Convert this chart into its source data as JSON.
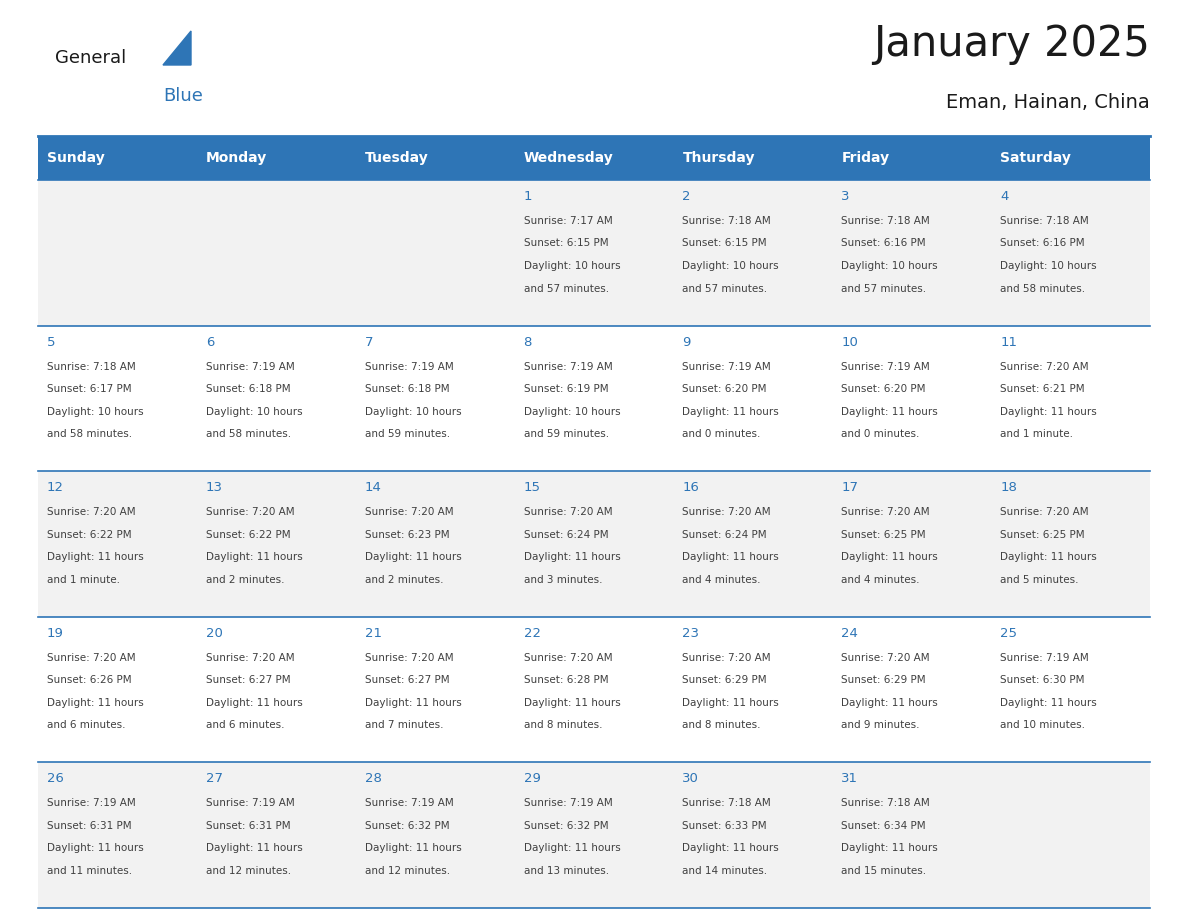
{
  "title": "January 2025",
  "subtitle": "Eman, Hainan, China",
  "days_of_week": [
    "Sunday",
    "Monday",
    "Tuesday",
    "Wednesday",
    "Thursday",
    "Friday",
    "Saturday"
  ],
  "header_bg": "#2E75B6",
  "header_text": "#FFFFFF",
  "day_number_color": "#2E75B6",
  "cell_bg_odd": "#F2F2F2",
  "cell_bg_even": "#FFFFFF",
  "text_color": "#404040",
  "line_color": "#2E75B6",
  "calendar_data": [
    [
      null,
      null,
      null,
      {
        "day": "1",
        "sunrise": "7:17 AM",
        "sunset": "6:15 PM",
        "daylight": "10 hours",
        "daylight2": "and 57 minutes."
      },
      {
        "day": "2",
        "sunrise": "7:18 AM",
        "sunset": "6:15 PM",
        "daylight": "10 hours",
        "daylight2": "and 57 minutes."
      },
      {
        "day": "3",
        "sunrise": "7:18 AM",
        "sunset": "6:16 PM",
        "daylight": "10 hours",
        "daylight2": "and 57 minutes."
      },
      {
        "day": "4",
        "sunrise": "7:18 AM",
        "sunset": "6:16 PM",
        "daylight": "10 hours",
        "daylight2": "and 58 minutes."
      }
    ],
    [
      {
        "day": "5",
        "sunrise": "7:18 AM",
        "sunset": "6:17 PM",
        "daylight": "10 hours",
        "daylight2": "and 58 minutes."
      },
      {
        "day": "6",
        "sunrise": "7:19 AM",
        "sunset": "6:18 PM",
        "daylight": "10 hours",
        "daylight2": "and 58 minutes."
      },
      {
        "day": "7",
        "sunrise": "7:19 AM",
        "sunset": "6:18 PM",
        "daylight": "10 hours",
        "daylight2": "and 59 minutes."
      },
      {
        "day": "8",
        "sunrise": "7:19 AM",
        "sunset": "6:19 PM",
        "daylight": "10 hours",
        "daylight2": "and 59 minutes."
      },
      {
        "day": "9",
        "sunrise": "7:19 AM",
        "sunset": "6:20 PM",
        "daylight": "11 hours",
        "daylight2": "and 0 minutes."
      },
      {
        "day": "10",
        "sunrise": "7:19 AM",
        "sunset": "6:20 PM",
        "daylight": "11 hours",
        "daylight2": "and 0 minutes."
      },
      {
        "day": "11",
        "sunrise": "7:20 AM",
        "sunset": "6:21 PM",
        "daylight": "11 hours",
        "daylight2": "and 1 minute."
      }
    ],
    [
      {
        "day": "12",
        "sunrise": "7:20 AM",
        "sunset": "6:22 PM",
        "daylight": "11 hours",
        "daylight2": "and 1 minute."
      },
      {
        "day": "13",
        "sunrise": "7:20 AM",
        "sunset": "6:22 PM",
        "daylight": "11 hours",
        "daylight2": "and 2 minutes."
      },
      {
        "day": "14",
        "sunrise": "7:20 AM",
        "sunset": "6:23 PM",
        "daylight": "11 hours",
        "daylight2": "and 2 minutes."
      },
      {
        "day": "15",
        "sunrise": "7:20 AM",
        "sunset": "6:24 PM",
        "daylight": "11 hours",
        "daylight2": "and 3 minutes."
      },
      {
        "day": "16",
        "sunrise": "7:20 AM",
        "sunset": "6:24 PM",
        "daylight": "11 hours",
        "daylight2": "and 4 minutes."
      },
      {
        "day": "17",
        "sunrise": "7:20 AM",
        "sunset": "6:25 PM",
        "daylight": "11 hours",
        "daylight2": "and 4 minutes."
      },
      {
        "day": "18",
        "sunrise": "7:20 AM",
        "sunset": "6:25 PM",
        "daylight": "11 hours",
        "daylight2": "and 5 minutes."
      }
    ],
    [
      {
        "day": "19",
        "sunrise": "7:20 AM",
        "sunset": "6:26 PM",
        "daylight": "11 hours",
        "daylight2": "and 6 minutes."
      },
      {
        "day": "20",
        "sunrise": "7:20 AM",
        "sunset": "6:27 PM",
        "daylight": "11 hours",
        "daylight2": "and 6 minutes."
      },
      {
        "day": "21",
        "sunrise": "7:20 AM",
        "sunset": "6:27 PM",
        "daylight": "11 hours",
        "daylight2": "and 7 minutes."
      },
      {
        "day": "22",
        "sunrise": "7:20 AM",
        "sunset": "6:28 PM",
        "daylight": "11 hours",
        "daylight2": "and 8 minutes."
      },
      {
        "day": "23",
        "sunrise": "7:20 AM",
        "sunset": "6:29 PM",
        "daylight": "11 hours",
        "daylight2": "and 8 minutes."
      },
      {
        "day": "24",
        "sunrise": "7:20 AM",
        "sunset": "6:29 PM",
        "daylight": "11 hours",
        "daylight2": "and 9 minutes."
      },
      {
        "day": "25",
        "sunrise": "7:19 AM",
        "sunset": "6:30 PM",
        "daylight": "11 hours",
        "daylight2": "and 10 minutes."
      }
    ],
    [
      {
        "day": "26",
        "sunrise": "7:19 AM",
        "sunset": "6:31 PM",
        "daylight": "11 hours",
        "daylight2": "and 11 minutes."
      },
      {
        "day": "27",
        "sunrise": "7:19 AM",
        "sunset": "6:31 PM",
        "daylight": "11 hours",
        "daylight2": "and 12 minutes."
      },
      {
        "day": "28",
        "sunrise": "7:19 AM",
        "sunset": "6:32 PM",
        "daylight": "11 hours",
        "daylight2": "and 12 minutes."
      },
      {
        "day": "29",
        "sunrise": "7:19 AM",
        "sunset": "6:32 PM",
        "daylight": "11 hours",
        "daylight2": "and 13 minutes."
      },
      {
        "day": "30",
        "sunrise": "7:18 AM",
        "sunset": "6:33 PM",
        "daylight": "11 hours",
        "daylight2": "and 14 minutes."
      },
      {
        "day": "31",
        "sunrise": "7:18 AM",
        "sunset": "6:34 PM",
        "daylight": "11 hours",
        "daylight2": "and 15 minutes."
      },
      null
    ]
  ]
}
